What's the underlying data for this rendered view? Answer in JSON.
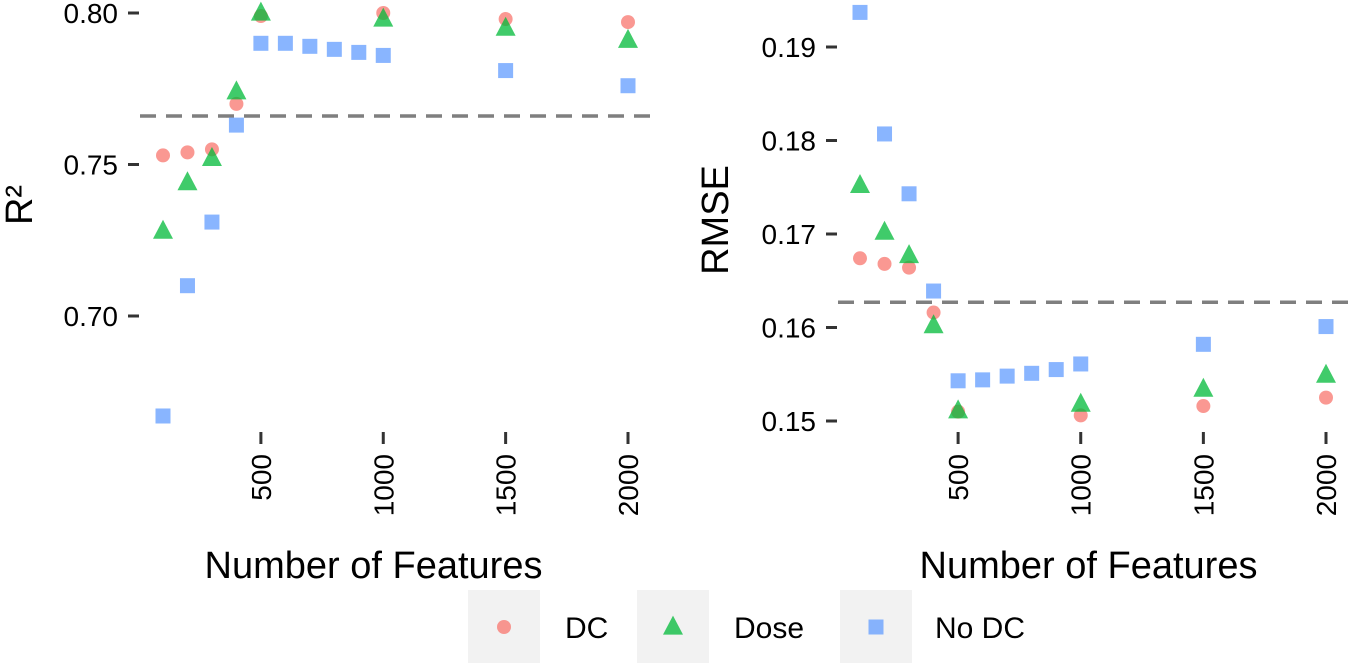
{
  "chart_data": [
    {
      "type": "scatter",
      "xlabel": "Number of Features",
      "ylabel": "R²",
      "x_ticks": [
        500,
        1000,
        1500,
        2000
      ],
      "y_ticks": [
        0.7,
        0.75,
        0.8
      ],
      "y_tick_labels": [
        "0.70",
        "0.75",
        "0.80"
      ],
      "xlim": [
        0,
        2100
      ],
      "ylim": [
        0.66,
        0.8
      ],
      "grid": false,
      "reference_line": 0.766,
      "series": [
        {
          "name": "DC",
          "marker": "circle",
          "color": "#F8766D",
          "x": [
            100,
            200,
            300,
            400,
            500,
            1000,
            1500,
            2000
          ],
          "y": [
            0.753,
            0.754,
            0.755,
            0.77,
            0.799,
            0.8,
            0.798,
            0.797
          ]
        },
        {
          "name": "Dose",
          "marker": "triangle",
          "color": "#00BA38",
          "x": [
            100,
            200,
            300,
            400,
            500,
            1000,
            1500,
            2000
          ],
          "y": [
            0.728,
            0.744,
            0.752,
            0.774,
            0.8,
            0.798,
            0.795,
            0.791
          ]
        },
        {
          "name": "No DC",
          "marker": "square",
          "color": "#619CFF",
          "x": [
            100,
            200,
            300,
            400,
            500,
            600,
            700,
            800,
            900,
            1000,
            1500,
            2000
          ],
          "y": [
            0.667,
            0.71,
            0.731,
            0.763,
            0.79,
            0.79,
            0.789,
            0.788,
            0.787,
            0.786,
            0.781,
            0.776
          ]
        }
      ]
    },
    {
      "type": "scatter",
      "xlabel": "Number of Features",
      "ylabel": "RMSE",
      "x_ticks": [
        500,
        1000,
        1500,
        2000
      ],
      "y_ticks": [
        0.15,
        0.16,
        0.17,
        0.18,
        0.19
      ],
      "y_tick_labels": [
        "0.15",
        "0.16",
        "0.17",
        "0.18",
        "0.19"
      ],
      "xlim": [
        0,
        2100
      ],
      "ylim": [
        0.15,
        0.195
      ],
      "grid": false,
      "reference_line": 0.1627,
      "series": [
        {
          "name": "DC",
          "marker": "circle",
          "color": "#F8766D",
          "x": [
            100,
            200,
            300,
            400,
            500,
            1000,
            1500,
            2000
          ],
          "y": [
            0.1674,
            0.1668,
            0.1664,
            0.1616,
            0.151,
            0.1506,
            0.1516,
            0.1525
          ]
        },
        {
          "name": "Dose",
          "marker": "triangle",
          "color": "#00BA38",
          "x": [
            100,
            200,
            300,
            400,
            500,
            1000,
            1500,
            2000
          ],
          "y": [
            0.1752,
            0.1702,
            0.1677,
            0.1602,
            0.1511,
            0.1518,
            0.1534,
            0.1549
          ]
        },
        {
          "name": "No DC",
          "marker": "square",
          "color": "#619CFF",
          "x": [
            100,
            200,
            300,
            400,
            500,
            600,
            700,
            800,
            900,
            1000,
            1500,
            2000
          ],
          "y": [
            0.1937,
            0.1807,
            0.1743,
            0.1639,
            0.1543,
            0.1544,
            0.1548,
            0.1551,
            0.1555,
            0.1561,
            0.1582,
            0.1601
          ]
        }
      ]
    }
  ],
  "legend": {
    "placement": "bottom",
    "items": [
      {
        "label": "DC",
        "marker": "circle",
        "color": "#F8766D"
      },
      {
        "label": "Dose",
        "marker": "triangle",
        "color": "#00BA38"
      },
      {
        "label": "No DC",
        "marker": "square",
        "color": "#619CFF"
      }
    ]
  }
}
